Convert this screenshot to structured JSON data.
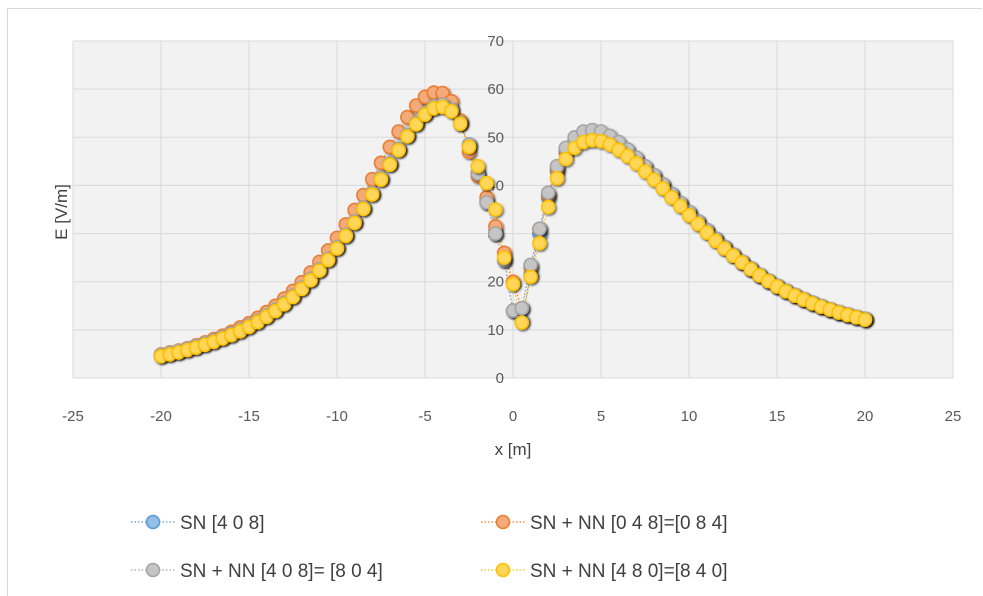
{
  "chart_data": {
    "type": "scatter",
    "title": "",
    "xlabel": "x [m]",
    "ylabel": "E [V/m]",
    "xlim": [
      -25,
      25
    ],
    "ylim": [
      0,
      70
    ],
    "xticks": [
      "-25",
      "-20",
      "-15",
      "-10",
      "-5",
      "0",
      "5",
      "10",
      "15",
      "20",
      "25"
    ],
    "yticks": [
      "0",
      "10",
      "20",
      "30",
      "40",
      "50",
      "60",
      "70"
    ],
    "grid": true,
    "legend_position": "bottom",
    "series": [
      {
        "name": "SN [4 0 8]",
        "color": "#5b9bd5",
        "x": [
          -20,
          -19.5,
          -19,
          -18.5,
          -18,
          -17.5,
          -17,
          -16.5,
          -16,
          -15.5,
          -15,
          -14.5,
          -14,
          -13.5,
          -13,
          -12.5,
          -12,
          -11.5,
          -11,
          -10.5,
          -10,
          -9.5,
          -9,
          -8.5,
          -8,
          -7.5,
          -7,
          -6.5,
          -6,
          -5.5,
          -5,
          -4.5,
          -4,
          -3.5,
          -3,
          -2.5,
          -2,
          -1.5,
          -1,
          -0.5,
          0,
          0.5,
          1,
          1.5,
          2,
          2.5,
          3,
          3.5,
          4,
          4.5,
          5,
          5.5,
          6,
          6.5,
          7,
          7.5,
          8,
          8.5,
          9,
          9.5,
          10,
          10.5,
          11,
          11.5,
          12,
          12.5,
          13,
          13.5,
          14,
          14.5,
          15,
          15.5,
          16,
          16.5,
          17,
          17.5,
          18,
          18.5,
          19,
          19.5,
          20
        ],
        "y": [
          4.8,
          5.2,
          5.6,
          6.1,
          6.6,
          7.2,
          7.8,
          8.5,
          9.2,
          10.0,
          10.9,
          11.9,
          13.0,
          14.2,
          15.6,
          17.1,
          18.8,
          20.6,
          22.6,
          24.8,
          27.2,
          29.8,
          32.5,
          35.4,
          38.4,
          41.5,
          44.6,
          47.6,
          50.5,
          53.0,
          55.0,
          56.4,
          56.8,
          55.8,
          53.0,
          48.5,
          42.5,
          36.5,
          30.0,
          24.5,
          14.0,
          12.0,
          21.5,
          30.0,
          37.5,
          43.0,
          46.8,
          49.0,
          50.2,
          50.6,
          50.4,
          49.6,
          48.4,
          47.0,
          45.4,
          43.7,
          41.9,
          40.0,
          38.1,
          36.2,
          34.3,
          32.4,
          30.6,
          28.9,
          27.2,
          25.6,
          24.1,
          22.7,
          21.4,
          20.2,
          19.1,
          18.1,
          17.2,
          16.4,
          15.6,
          14.9,
          14.3,
          13.7,
          13.2,
          12.7,
          12.3
        ]
      },
      {
        "name": "SN + NN [0 4 8]=[0 8 4]",
        "color": "#ed7d31",
        "x": [
          -20,
          -19.5,
          -19,
          -18.5,
          -18,
          -17.5,
          -17,
          -16.5,
          -16,
          -15.5,
          -15,
          -14.5,
          -14,
          -13.5,
          -13,
          -12.5,
          -12,
          -11.5,
          -11,
          -10.5,
          -10,
          -9.5,
          -9,
          -8.5,
          -8,
          -7.5,
          -7,
          -6.5,
          -6,
          -5.5,
          -5,
          -4.5,
          -4,
          -3.5,
          -3,
          -2.5,
          -2,
          -1.5,
          -1,
          -0.5,
          0,
          0.5,
          1,
          1.5,
          2,
          2.5,
          3,
          3.5,
          4,
          4.5,
          5,
          5.5,
          6,
          6.5,
          7,
          7.5,
          8,
          8.5,
          9,
          9.5,
          10,
          10.5,
          11,
          11.5,
          12,
          12.5,
          13,
          13.5,
          14,
          14.5,
          15,
          15.5,
          16,
          16.5,
          17,
          17.5,
          18,
          18.5,
          19,
          19.5,
          20
        ],
        "y": [
          4.9,
          5.3,
          5.7,
          6.2,
          6.8,
          7.4,
          8.1,
          8.8,
          9.6,
          10.5,
          11.4,
          12.5,
          13.7,
          15.0,
          16.5,
          18.1,
          19.9,
          21.9,
          24.1,
          26.5,
          29.1,
          31.9,
          34.9,
          38.0,
          41.3,
          44.7,
          48.0,
          51.2,
          54.2,
          56.6,
          58.4,
          59.3,
          59.2,
          57.5,
          53.5,
          47.0,
          42.0,
          37.5,
          31.5,
          26.0,
          20.0,
          14.5,
          23.0,
          31.0,
          38.0,
          43.5,
          47.2,
          49.2,
          50.2,
          50.5,
          50.3,
          49.5,
          48.3,
          46.9,
          45.3,
          43.6,
          41.8,
          40.0,
          38.1,
          36.2,
          34.3,
          32.4,
          30.6,
          28.9,
          27.2,
          25.6,
          24.1,
          22.7,
          21.4,
          20.2,
          19.1,
          18.1,
          17.2,
          16.4,
          15.6,
          14.9,
          14.3,
          13.7,
          13.2,
          12.7,
          12.3
        ]
      },
      {
        "name": "SN + NN [4 0 8]= [8 0 4]",
        "color": "#a5a5a5",
        "x": [
          -20,
          -19.5,
          -19,
          -18.5,
          -18,
          -17.5,
          -17,
          -16.5,
          -16,
          -15.5,
          -15,
          -14.5,
          -14,
          -13.5,
          -13,
          -12.5,
          -12,
          -11.5,
          -11,
          -10.5,
          -10,
          -9.5,
          -9,
          -8.5,
          -8,
          -7.5,
          -7,
          -6.5,
          -6,
          -5.5,
          -5,
          -4.5,
          -4,
          -3.5,
          -3,
          -2.5,
          -2,
          -1.5,
          -1,
          -0.5,
          0,
          0.5,
          1,
          1.5,
          2,
          2.5,
          3,
          3.5,
          4,
          4.5,
          5,
          5.5,
          6,
          6.5,
          7,
          7.5,
          8,
          8.5,
          9,
          9.5,
          10,
          10.5,
          11,
          11.5,
          12,
          12.5,
          13,
          13.5,
          14,
          14.5,
          15,
          15.5,
          16,
          16.5,
          17,
          17.5,
          18,
          18.5,
          19,
          19.5,
          20
        ],
        "y": [
          4.8,
          5.2,
          5.6,
          6.1,
          6.6,
          7.2,
          7.8,
          8.5,
          9.2,
          10.0,
          10.9,
          11.9,
          13.0,
          14.2,
          15.6,
          17.1,
          18.8,
          20.6,
          22.6,
          24.8,
          27.2,
          29.8,
          32.5,
          35.4,
          38.4,
          41.5,
          44.6,
          47.6,
          50.5,
          53.0,
          55.0,
          56.4,
          56.8,
          55.8,
          53.0,
          48.5,
          42.5,
          36.5,
          30.0,
          24.5,
          14.0,
          14.5,
          23.5,
          31.0,
          38.5,
          44.0,
          47.8,
          50.0,
          51.2,
          51.5,
          51.2,
          50.3,
          49.0,
          47.5,
          45.8,
          44.0,
          42.2,
          40.3,
          38.3,
          36.4,
          34.5,
          32.6,
          30.8,
          29.0,
          27.3,
          25.7,
          24.2,
          22.8,
          21.5,
          20.3,
          19.2,
          18.2,
          17.3,
          16.4,
          15.7,
          15.0,
          14.3,
          13.7,
          13.2,
          12.7,
          12.3
        ]
      },
      {
        "name": "SN + NN [4 8 0]=[8 4 0]",
        "color": "#ffc000",
        "x": [
          -20,
          -19.5,
          -19,
          -18.5,
          -18,
          -17.5,
          -17,
          -16.5,
          -16,
          -15.5,
          -15,
          -14.5,
          -14,
          -13.5,
          -13,
          -12.5,
          -12,
          -11.5,
          -11,
          -10.5,
          -10,
          -9.5,
          -9,
          -8.5,
          -8,
          -7.5,
          -7,
          -6.5,
          -6,
          -5.5,
          -5,
          -4.5,
          -4,
          -3.5,
          -3,
          -2.5,
          -2,
          -1.5,
          -1,
          -0.5,
          0,
          0.5,
          1,
          1.5,
          2,
          2.5,
          3,
          3.5,
          4,
          4.5,
          5,
          5.5,
          6,
          6.5,
          7,
          7.5,
          8,
          8.5,
          9,
          9.5,
          10,
          10.5,
          11,
          11.5,
          12,
          12.5,
          13,
          13.5,
          14,
          14.5,
          15,
          15.5,
          16,
          16.5,
          17,
          17.5,
          18,
          18.5,
          19,
          19.5,
          20
        ],
        "y": [
          4.5,
          4.9,
          5.3,
          5.8,
          6.3,
          6.9,
          7.5,
          8.2,
          8.9,
          9.7,
          10.6,
          11.6,
          12.7,
          13.9,
          15.3,
          16.8,
          18.5,
          20.3,
          22.3,
          24.5,
          26.9,
          29.5,
          32.2,
          35.1,
          38.1,
          41.2,
          44.3,
          47.3,
          50.2,
          52.7,
          54.7,
          56.0,
          56.3,
          55.4,
          52.8,
          48.0,
          44.0,
          40.5,
          35.0,
          25.0,
          19.5,
          11.5,
          21.0,
          28.0,
          35.5,
          41.5,
          45.5,
          47.8,
          49.0,
          49.4,
          49.2,
          48.5,
          47.4,
          46.1,
          44.6,
          42.9,
          41.2,
          39.4,
          37.5,
          35.7,
          33.8,
          32.0,
          30.2,
          28.5,
          26.9,
          25.4,
          24.0,
          22.6,
          21.3,
          20.1,
          19.0,
          18.0,
          17.1,
          16.3,
          15.5,
          14.8,
          14.2,
          13.6,
          13.1,
          12.6,
          12.1
        ]
      }
    ]
  }
}
